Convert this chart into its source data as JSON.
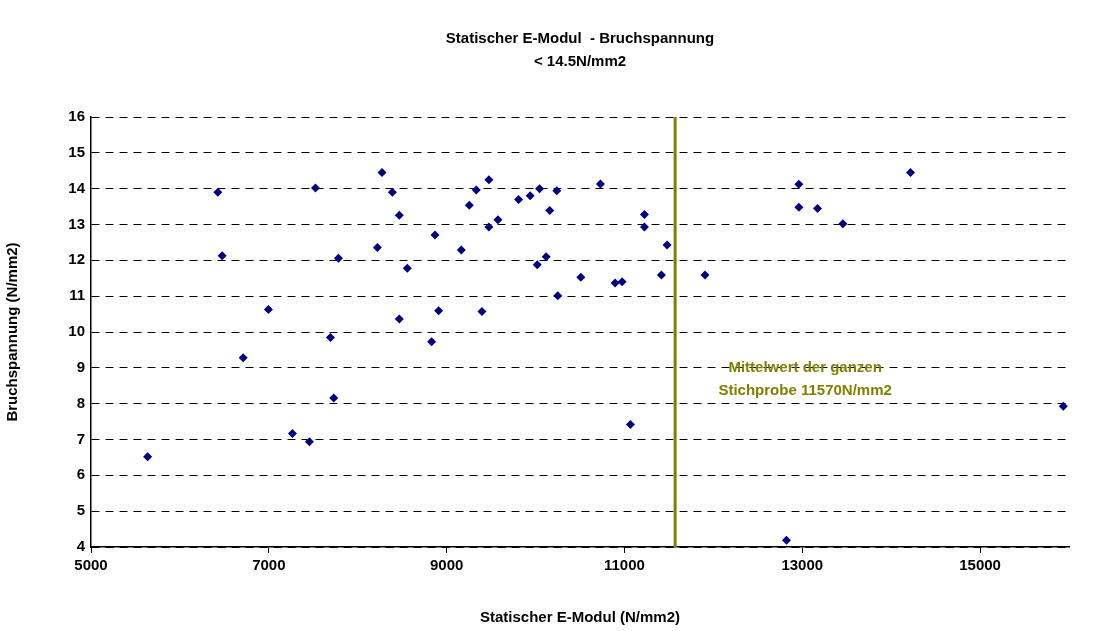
{
  "chart_data": {
    "type": "scatter",
    "title": "Statischer E-Modul  - Bruchspannung",
    "subtitle": "< 14.5N/mm2",
    "xlabel": "Statischer E-Modul (N/mm2)",
    "ylabel": "Bruchspannung (N/mm2)",
    "x": [
      5637,
      6427,
      6475,
      6712,
      6996,
      7266,
      7457,
      7525,
      7693,
      7730,
      7783,
      8221,
      8273,
      8390,
      8468,
      8468,
      8558,
      8831,
      8869,
      8910,
      9165,
      9255,
      9334,
      9397,
      9475,
      9475,
      9576,
      9809,
      9940,
      10019,
      10045,
      10120,
      10160,
      10239,
      10250,
      10509,
      10730,
      10895,
      10974,
      11067,
      11225,
      11225,
      11416,
      11479,
      11906,
      12822,
      12962,
      12962,
      13171,
      13457,
      14217,
      15936
    ],
    "series": [
      {
        "color": "#000080",
        "values": [
          6.52,
          13.9,
          12.13,
          9.28,
          10.63,
          7.17,
          6.94,
          14.02,
          9.85,
          8.16,
          12.06,
          12.36,
          14.45,
          13.9,
          13.26,
          10.36,
          11.78,
          9.73,
          12.71,
          10.59,
          12.29,
          13.54,
          13.96,
          10.57,
          14.25,
          12.93,
          13.13,
          13.7,
          13.8,
          11.88,
          14.0,
          12.1,
          13.39,
          13.94,
          11.01,
          11.53,
          14.13,
          11.37,
          11.4,
          7.42,
          13.28,
          12.93,
          11.59,
          12.43,
          11.59,
          4.19,
          14.12,
          13.48,
          13.45,
          13.02,
          14.45,
          7.93
        ]
      }
    ],
    "xlim": [
      5000,
      16000
    ],
    "xticks": [
      5000,
      7000,
      9000,
      11000,
      13000,
      15000
    ],
    "ylim": [
      4,
      16
    ],
    "yticks": [
      4,
      5,
      6,
      7,
      8,
      9,
      10,
      11,
      12,
      13,
      14,
      15,
      16
    ],
    "grid": "y",
    "legend": false,
    "marker": "diamond",
    "ref_lines": [
      {
        "axis": "x",
        "value": 11570,
        "label": "Mittelwert der ganzen Stichprobe 11570N/mm2",
        "color": "#808000",
        "line_style": "solid"
      }
    ]
  }
}
